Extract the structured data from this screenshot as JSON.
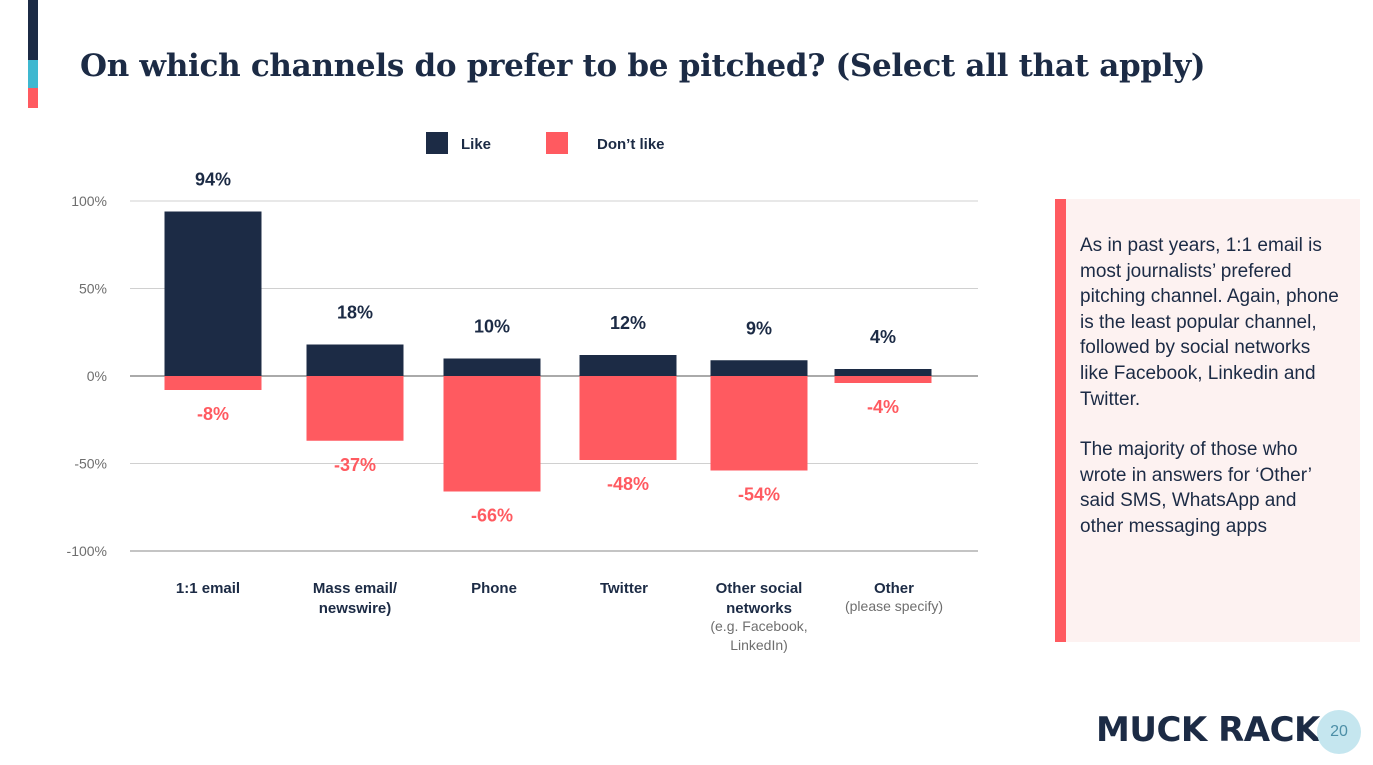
{
  "title": "On which channels do prefer to be pitched? (Select all that apply)",
  "colors": {
    "like": "#1c2b45",
    "dislike": "#ff5a60",
    "accent_teal": "#3fb8d0"
  },
  "chart_data": {
    "type": "bar",
    "legend": [
      {
        "name": "Like",
        "color": "#1c2b45"
      },
      {
        "name": "Don’t like",
        "color": "#ff5a60"
      }
    ],
    "legend_position": "top",
    "grid": true,
    "ylim": [
      -100,
      100
    ],
    "yticks": [
      "100%",
      "50%",
      "0%",
      "-50%",
      "-100%"
    ],
    "categories": [
      {
        "main": [
          "1:1 email"
        ],
        "sub": []
      },
      {
        "main": [
          "Mass email/",
          "newswire)"
        ],
        "sub": []
      },
      {
        "main": [
          "Phone"
        ],
        "sub": []
      },
      {
        "main": [
          "Twitter"
        ],
        "sub": []
      },
      {
        "main": [
          "Other social",
          "networks"
        ],
        "sub": [
          "(e.g. Facebook,",
          "LinkedIn)"
        ]
      },
      {
        "main": [
          "Other"
        ],
        "sub": [
          "(please specify)"
        ]
      }
    ],
    "series": [
      {
        "name": "Like",
        "values": [
          94,
          18,
          10,
          12,
          9,
          4
        ],
        "labels": [
          "94%",
          "18%",
          "10%",
          "12%",
          "9%",
          "4%"
        ]
      },
      {
        "name": "Don’t like",
        "values": [
          -8,
          -37,
          -66,
          -48,
          -54,
          -4
        ],
        "labels": [
          "-8%",
          "-37%",
          "-66%",
          "-48%",
          "-54%",
          "-4%"
        ]
      }
    ]
  },
  "callout": {
    "paragraphs": [
      "As in past years, 1:1 email is most journalists’ prefered pitching channel. Again, phone is the least popular channel, followed by social networks like Facebook, Linkedin and Twitter.",
      "The majority of those who wrote in answers for ‘Other’ said SMS, WhatsApp and other messaging apps"
    ]
  },
  "logo": "MUCK RACK",
  "page_number": "20"
}
